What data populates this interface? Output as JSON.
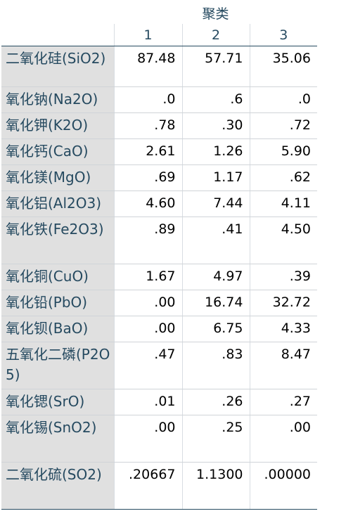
{
  "table": {
    "group_header": "聚类",
    "columns": [
      "1",
      "2",
      "3"
    ],
    "rows": [
      {
        "label": "二氧化硅(SiO2)",
        "values": [
          "87.48",
          "57.71",
          "35.06"
        ]
      },
      {
        "label": "氧化钠(Na2O)",
        "values": [
          ".0",
          ".6",
          ".0"
        ]
      },
      {
        "label": "氧化钾(K2O)",
        "values": [
          ".78",
          ".30",
          ".72"
        ]
      },
      {
        "label": "氧化钙(CaO)",
        "values": [
          "2.61",
          "1.26",
          "5.90"
        ]
      },
      {
        "label": "氧化镁(MgO)",
        "values": [
          ".69",
          "1.17",
          ".62"
        ]
      },
      {
        "label": "氧化铝(Al2O3)",
        "values": [
          "4.60",
          "7.44",
          "4.11"
        ]
      },
      {
        "label": "氧化铁(Fe2O3)",
        "values": [
          ".89",
          ".41",
          "4.50"
        ]
      },
      {
        "label": "氧化铜(CuO)",
        "values": [
          "1.67",
          "4.97",
          ".39"
        ]
      },
      {
        "label": "氧化铅(PbO)",
        "values": [
          ".00",
          "16.74",
          "32.72"
        ]
      },
      {
        "label": "氧化钡(BaO)",
        "values": [
          ".00",
          "6.75",
          "4.33"
        ]
      },
      {
        "label": "五氧化二磷(P2O5)",
        "values": [
          ".47",
          ".83",
          "8.47"
        ]
      },
      {
        "label": "氧化锶(SrO)",
        "values": [
          ".01",
          ".26",
          ".27"
        ]
      },
      {
        "label": "氧化锡(SnO2)",
        "values": [
          ".00",
          ".25",
          ".00"
        ]
      },
      {
        "label": "二氧化硫(SO2)",
        "values": [
          ".20667",
          "1.1300",
          ".00000"
        ]
      }
    ]
  }
}
